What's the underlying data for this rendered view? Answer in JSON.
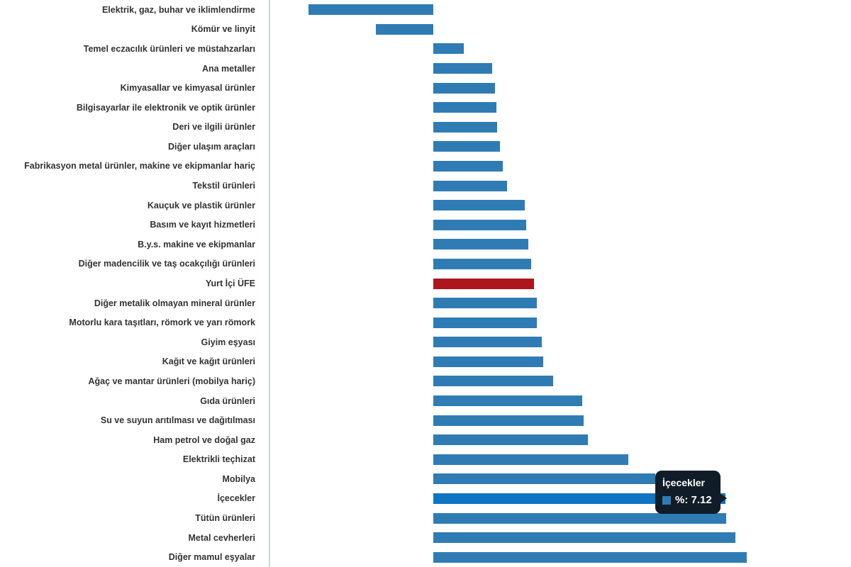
{
  "chart_data": {
    "type": "bar",
    "orientation": "horizontal",
    "title": "",
    "xlabel": "",
    "ylabel": "",
    "series_name": "%",
    "unit": "%",
    "grid": false,
    "legend_position": "none",
    "value_axis_labels_visible": false,
    "xlim": [
      -3.97,
      10.17
    ],
    "categories": [
      "Elektrik, gaz, buhar ve iklimlendirme",
      "Kömür ve linyit",
      "Temel eczacılık ürünleri ve müstahzarları",
      "Ana metaller",
      "Kimyasallar ve kimyasal ürünler",
      "Bilgisayarlar ile elektronik ve optik ürünler",
      "Deri ve ilgili ürünler",
      "Diğer ulaşım araçları",
      "Fabrikasyon metal ürünler, makine ve ekipmanlar hariç",
      "Tekstil ürünleri",
      "Kauçuk ve plastik ürünler",
      "Basım ve kayıt hizmetleri",
      "B.y.s. makine ve ekipmanlar",
      "Diğer madencilik ve taş ocakçılığı ürünleri",
      "Yurt İçi ÜFE",
      "Diğer metalik olmayan mineral ürünler",
      "Motorlu kara taşıtları, römork ve yarı römork",
      "Giyim eşyası",
      "Kağıt ve kağıt ürünleri",
      "Ağaç ve mantar ürünleri (mobilya hariç)",
      "Gıda ürünleri",
      "Su ve suyun arıtılması ve dağıtılması",
      "Ham petrol ve doğal gaz",
      "Elektrikli teçhizat",
      "Mobilya",
      "İçecekler",
      "Tütün ürünleri",
      "Metal cevherleri",
      "Diğer mamul eşyalar"
    ],
    "values": [
      -3.04,
      -1.4,
      0.75,
      1.43,
      1.51,
      1.53,
      1.55,
      1.62,
      1.69,
      1.8,
      2.23,
      2.27,
      2.31,
      2.38,
      2.46,
      2.52,
      2.53,
      2.64,
      2.67,
      2.92,
      3.63,
      3.66,
      3.77,
      4.75,
      5.41,
      7.12,
      7.13,
      7.35,
      7.63
    ],
    "highlight": {
      "index": 25,
      "state": "hovered",
      "category": "İçecekler"
    },
    "reference": {
      "index": 14,
      "category": "Yurt İçi ÜFE"
    },
    "colors": {
      "background": "#FFFFFF",
      "bar": "#2F7CB5",
      "bar_hover": "#0E74C4",
      "reference_bar": "#AE161F",
      "axis_line": "#CCD6E0",
      "label_text": "#333333"
    }
  },
  "tooltip": {
    "title": "İçecekler",
    "series_label": "%",
    "value": 7.12,
    "text": "%: 7.12",
    "colors": {
      "background": "#111C29",
      "text": "#FFFFFF",
      "marker": "#2F7CB5"
    }
  }
}
